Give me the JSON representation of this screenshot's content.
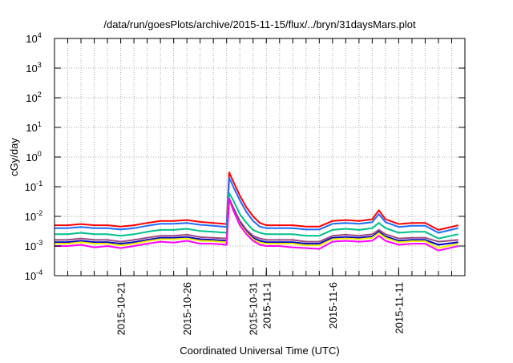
{
  "chart_data": {
    "type": "line",
    "title": "/data/run/goesPlots/archive/2015-11-15/flux/../bryn/31daysMars.plot",
    "xlabel": "Coordinated Universal Time (UTC)",
    "ylabel": "cGy/day",
    "yscale": "log",
    "ylim": [
      0.0001,
      10000
    ],
    "xlim_days_since_2015-10-16": [
      0,
      31
    ],
    "grid": true,
    "legend": "none",
    "y_ticks": [
      {
        "base": "10",
        "exp": "4",
        "value": 10000
      },
      {
        "base": "10",
        "exp": "3",
        "value": 1000
      },
      {
        "base": "10",
        "exp": "2",
        "value": 100
      },
      {
        "base": "10",
        "exp": "1",
        "value": 10
      },
      {
        "base": "10",
        "exp": "0",
        "value": 1
      },
      {
        "base": "10",
        "exp": "-1",
        "value": 0.1
      },
      {
        "base": "10",
        "exp": "-2",
        "value": 0.01
      },
      {
        "base": "10",
        "exp": "-3",
        "value": 0.001
      },
      {
        "base": "10",
        "exp": "-4",
        "value": 0.0001
      }
    ],
    "x_ticks": [
      {
        "label": "2015-10-21",
        "day": 5
      },
      {
        "label": "2015-10-26",
        "day": 10
      },
      {
        "label": "2015-10-31",
        "day": 15
      },
      {
        "label": "2015-11-1",
        "day": 16
      },
      {
        "label": "2015-11-6",
        "day": 21
      },
      {
        "label": "2015-11-11",
        "day": 26
      }
    ],
    "x": [
      0,
      1,
      2,
      3,
      4,
      5,
      6,
      7,
      8,
      9,
      10,
      11,
      12,
      13,
      13.2,
      13.5,
      14,
      14.5,
      15,
      15.5,
      16,
      17,
      18,
      19,
      20,
      21,
      22,
      23,
      24,
      24.5,
      25,
      26,
      27,
      28,
      29,
      30.5
    ],
    "series": [
      {
        "name": "red",
        "color": "#ff0000",
        "values": [
          0.005,
          0.005,
          0.0055,
          0.005,
          0.005,
          0.0045,
          0.005,
          0.006,
          0.007,
          0.007,
          0.0075,
          0.0065,
          0.006,
          0.0055,
          0.3,
          0.15,
          0.05,
          0.02,
          0.01,
          0.006,
          0.005,
          0.005,
          0.005,
          0.0045,
          0.0045,
          0.007,
          0.0075,
          0.007,
          0.008,
          0.016,
          0.008,
          0.0055,
          0.006,
          0.006,
          0.0035,
          0.005
        ]
      },
      {
        "name": "blue",
        "color": "#1e6cff",
        "values": [
          0.004,
          0.004,
          0.0044,
          0.004,
          0.004,
          0.0036,
          0.004,
          0.0048,
          0.0056,
          0.0056,
          0.006,
          0.0052,
          0.0048,
          0.0044,
          0.2,
          0.1,
          0.035,
          0.014,
          0.007,
          0.0045,
          0.004,
          0.004,
          0.004,
          0.0036,
          0.0036,
          0.0056,
          0.006,
          0.0056,
          0.0064,
          0.012,
          0.0064,
          0.0044,
          0.0048,
          0.0048,
          0.0028,
          0.004
        ]
      },
      {
        "name": "teal",
        "color": "#00c08a",
        "values": [
          0.0025,
          0.0025,
          0.0028,
          0.0025,
          0.0025,
          0.0022,
          0.0025,
          0.003,
          0.0035,
          0.0035,
          0.0038,
          0.0032,
          0.003,
          0.0028,
          0.06,
          0.035,
          0.012,
          0.006,
          0.0035,
          0.0028,
          0.0025,
          0.0025,
          0.0025,
          0.0022,
          0.0022,
          0.0035,
          0.0038,
          0.0035,
          0.004,
          0.006,
          0.004,
          0.0028,
          0.003,
          0.003,
          0.0018,
          0.0025
        ]
      },
      {
        "name": "purple",
        "color": "#9a4a80",
        "values": [
          0.0016,
          0.0016,
          0.0018,
          0.0016,
          0.0016,
          0.0014,
          0.0016,
          0.0019,
          0.0022,
          0.0022,
          0.0024,
          0.002,
          0.0019,
          0.0018,
          0.04,
          0.02,
          0.007,
          0.0035,
          0.0022,
          0.0018,
          0.0016,
          0.0016,
          0.0016,
          0.0014,
          0.0014,
          0.0022,
          0.0024,
          0.0022,
          0.0025,
          0.0035,
          0.0025,
          0.0018,
          0.0019,
          0.0019,
          0.0014,
          0.0016
        ]
      },
      {
        "name": "navy",
        "color": "#0000c8",
        "values": [
          0.00135,
          0.00135,
          0.0015,
          0.00135,
          0.00135,
          0.0012,
          0.00135,
          0.0016,
          0.0019,
          0.0019,
          0.002,
          0.0017,
          0.0016,
          0.0015,
          0.035,
          0.017,
          0.006,
          0.003,
          0.0019,
          0.0015,
          0.00135,
          0.00135,
          0.00135,
          0.0012,
          0.0012,
          0.0019,
          0.002,
          0.0019,
          0.0021,
          0.003,
          0.0021,
          0.0015,
          0.0016,
          0.0016,
          0.0011,
          0.00135
        ]
      },
      {
        "name": "yellow",
        "color": "#f0f000",
        "values": [
          0.0012,
          0.0012,
          0.00135,
          0.0012,
          0.0012,
          0.00105,
          0.0012,
          0.00145,
          0.0017,
          0.0017,
          0.0018,
          0.0015,
          0.00145,
          0.00135,
          0.035,
          0.016,
          0.0055,
          0.0028,
          0.0017,
          0.0013,
          0.0012,
          0.0012,
          0.0012,
          0.00105,
          0.00105,
          0.0017,
          0.0018,
          0.0017,
          0.0019,
          0.0027,
          0.0019,
          0.00135,
          0.00145,
          0.00145,
          0.00085,
          0.0012
        ]
      },
      {
        "name": "magenta",
        "color": "#ff00ff",
        "values": [
          0.001,
          0.001,
          0.0011,
          0.0009,
          0.001,
          0.00085,
          0.001,
          0.0012,
          0.0014,
          0.0013,
          0.0015,
          0.0012,
          0.0012,
          0.0011,
          0.04,
          0.016,
          0.005,
          0.0025,
          0.0015,
          0.0011,
          0.001,
          0.001,
          0.0009,
          0.00085,
          0.0008,
          0.0014,
          0.0015,
          0.0014,
          0.0015,
          0.0022,
          0.0015,
          0.0011,
          0.0012,
          0.0012,
          0.0007,
          0.001
        ]
      }
    ]
  }
}
